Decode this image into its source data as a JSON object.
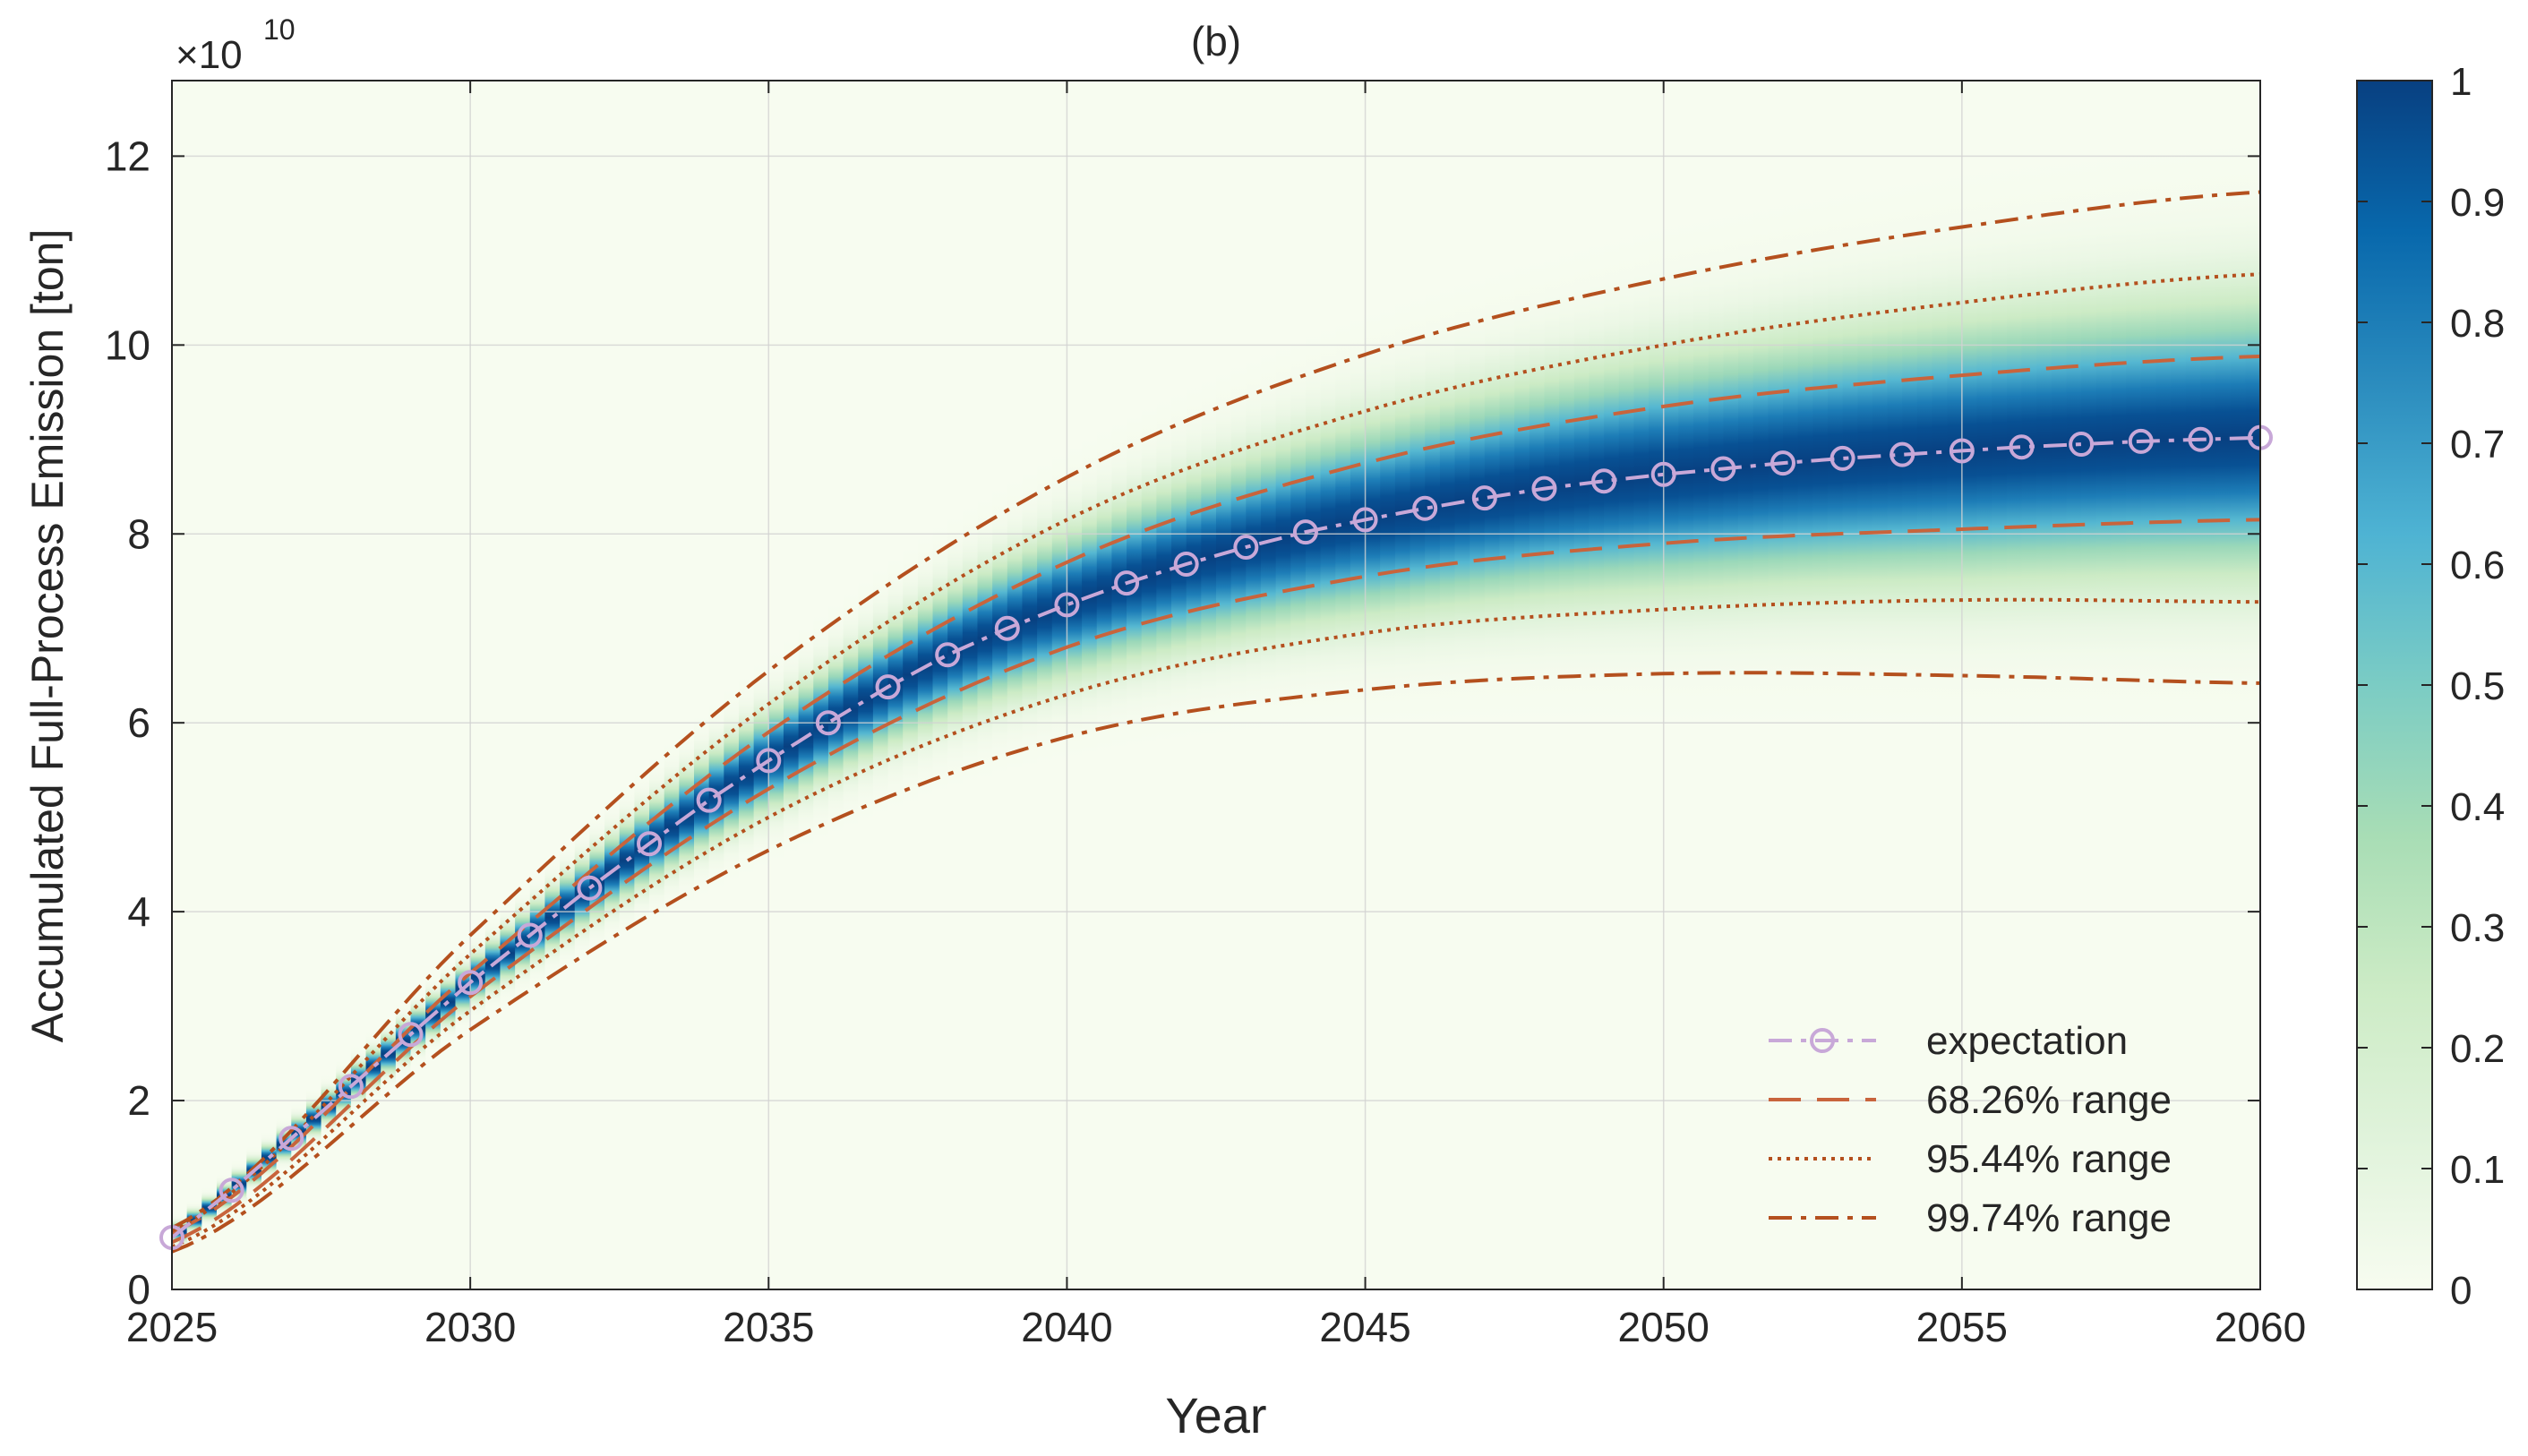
{
  "chart_data": {
    "type": "line",
    "title": "(b)",
    "xlabel": "Year",
    "ylabel": "Accumulated Full-Process Emission [ton]",
    "y_exponent_label": "×10",
    "y_exponent_power": "10",
    "y_scale": 10000000000,
    "xlim": [
      2025,
      2060
    ],
    "ylim": [
      0,
      12.8
    ],
    "x_ticks": [
      2025,
      2030,
      2035,
      2040,
      2045,
      2050,
      2055,
      2060
    ],
    "y_ticks": [
      0,
      2,
      4,
      6,
      8,
      10,
      12
    ],
    "grid": true,
    "legend_position": "bottom-right",
    "background_density": "normalized probability density heatmap centered on expectation",
    "colorbar": {
      "label_ticks": [
        0,
        0.1,
        0.2,
        0.3,
        0.4,
        0.5,
        0.6,
        0.7,
        0.8,
        0.9,
        1
      ],
      "colors": [
        "#f7fcf0",
        "#e0f3db",
        "#ccebc5",
        "#a8ddb5",
        "#7bccc4",
        "#4eb3d3",
        "#2b8cbe",
        "#0868ac",
        "#084081"
      ]
    },
    "series": [
      {
        "name": "expectation",
        "style": "dash-dot with circle markers",
        "color": "#c8a8d8",
        "x": [
          2025,
          2026,
          2027,
          2028,
          2029,
          2030,
          2031,
          2032,
          2033,
          2034,
          2035,
          2036,
          2037,
          2038,
          2039,
          2040,
          2041,
          2042,
          2043,
          2044,
          2045,
          2046,
          2047,
          2048,
          2049,
          2050,
          2051,
          2052,
          2053,
          2054,
          2055,
          2056,
          2057,
          2058,
          2059,
          2060
        ],
        "values": [
          0.55,
          1.05,
          1.6,
          2.15,
          2.7,
          3.25,
          3.75,
          4.25,
          4.72,
          5.18,
          5.6,
          6.0,
          6.38,
          6.72,
          7.0,
          7.25,
          7.48,
          7.68,
          7.86,
          8.02,
          8.15,
          8.27,
          8.38,
          8.48,
          8.56,
          8.63,
          8.69,
          8.75,
          8.8,
          8.84,
          8.88,
          8.92,
          8.95,
          8.98,
          9.0,
          9.02
        ]
      },
      {
        "name": "68.26% range",
        "style": "dashed",
        "color": "#c8643c",
        "upper": {
          "x": [
            2025,
            2030,
            2035,
            2040,
            2045,
            2050,
            2055,
            2060
          ],
          "values": [
            0.6,
            3.35,
            5.9,
            7.7,
            8.75,
            9.35,
            9.68,
            9.88
          ]
        },
        "lower": {
          "x": [
            2025,
            2030,
            2035,
            2040,
            2045,
            2050,
            2055,
            2060
          ],
          "values": [
            0.5,
            3.1,
            5.3,
            6.8,
            7.55,
            7.9,
            8.05,
            8.15
          ]
        }
      },
      {
        "name": "95.44% range",
        "style": "dotted",
        "color": "#b4501e",
        "upper": {
          "x": [
            2025,
            2030,
            2035,
            2040,
            2045,
            2050,
            2055,
            2060
          ],
          "values": [
            0.62,
            3.55,
            6.2,
            8.15,
            9.3,
            10.0,
            10.45,
            10.75
          ]
        },
        "lower": {
          "x": [
            2025,
            2030,
            2035,
            2040,
            2045,
            2050,
            2055,
            2060
          ],
          "values": [
            0.45,
            2.95,
            5.0,
            6.3,
            6.95,
            7.2,
            7.3,
            7.28
          ]
        }
      },
      {
        "name": "99.74% range",
        "style": "dash-dot",
        "color": "#b4501e",
        "upper": {
          "x": [
            2025,
            2030,
            2035,
            2040,
            2045,
            2050,
            2055,
            2060
          ],
          "values": [
            0.65,
            3.75,
            6.55,
            8.6,
            9.9,
            10.7,
            11.25,
            11.62
          ]
        },
        "lower": {
          "x": [
            2025,
            2030,
            2035,
            2040,
            2045,
            2050,
            2055,
            2060
          ],
          "values": [
            0.4,
            2.75,
            4.65,
            5.85,
            6.35,
            6.52,
            6.5,
            6.42
          ]
        }
      }
    ]
  }
}
